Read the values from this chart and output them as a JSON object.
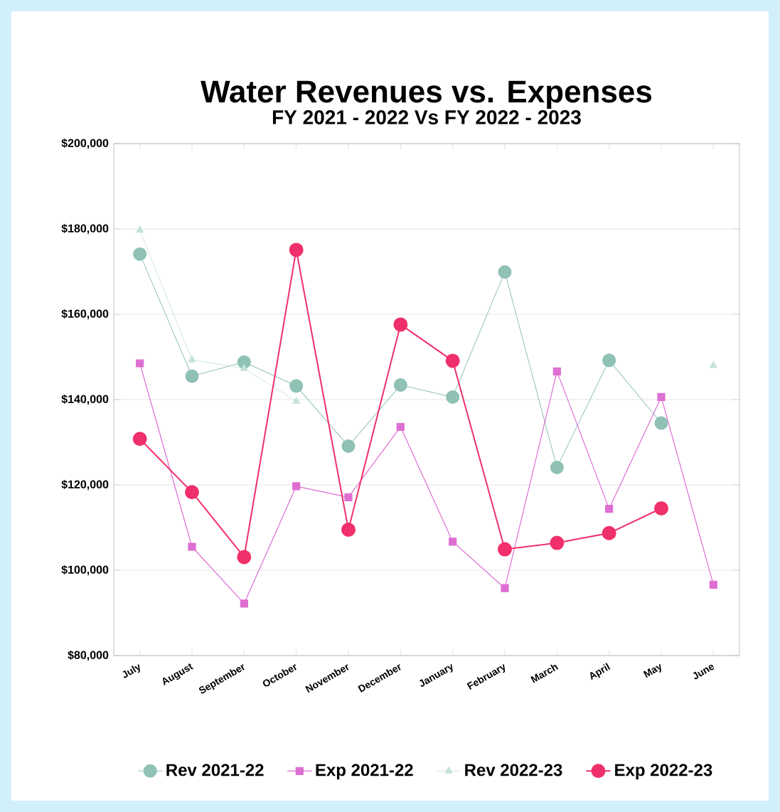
{
  "chart_data": {
    "type": "line",
    "title": "Water Revenues vs. Expenses",
    "subtitle": "FY 2021 - 2022  Vs  FY 2022 - 2023",
    "categories": [
      "July",
      "August",
      "September",
      "October",
      "November",
      "December",
      "January",
      "February",
      "March",
      "April",
      "May",
      "June"
    ],
    "series": [
      {
        "name": "Rev 2021-22",
        "color": "#8fc1b5",
        "marker": "circle",
        "values": [
          174100,
          145500,
          148800,
          143200,
          129100,
          143400,
          140600,
          169900,
          124100,
          149200,
          134500,
          null
        ]
      },
      {
        "name": "Exp 2021-22",
        "color": "#de6fd2",
        "marker": "square",
        "values": [
          148500,
          105500,
          92200,
          119700,
          117100,
          133600,
          106700,
          95800,
          146600,
          114400,
          140600,
          96600
        ]
      },
      {
        "name": "Rev 2022-23",
        "color": "#c4e2dc",
        "marker": "triangle",
        "values": [
          179700,
          149300,
          147300,
          139600,
          null,
          null,
          null,
          null,
          null,
          null,
          null,
          148000
        ]
      },
      {
        "name": "Exp 2022-23",
        "color": "#f0306a",
        "marker": "circle",
        "values": [
          130800,
          118300,
          103100,
          175100,
          109500,
          157600,
          149100,
          104900,
          106400,
          108700,
          114500,
          null
        ]
      }
    ],
    "ylim": [
      80000,
      200000
    ],
    "yticks": [
      {
        "value": 80000,
        "label": "$80,000"
      },
      {
        "value": 100000,
        "label": "$100,000"
      },
      {
        "value": 120000,
        "label": "$120,000"
      },
      {
        "value": 140000,
        "label": "$140,000"
      },
      {
        "value": 160000,
        "label": "$160,000"
      },
      {
        "value": 180000,
        "label": "$180,000"
      },
      {
        "value": 200000,
        "label": "$200,000"
      }
    ],
    "grid": "y",
    "legend": "bottom"
  }
}
